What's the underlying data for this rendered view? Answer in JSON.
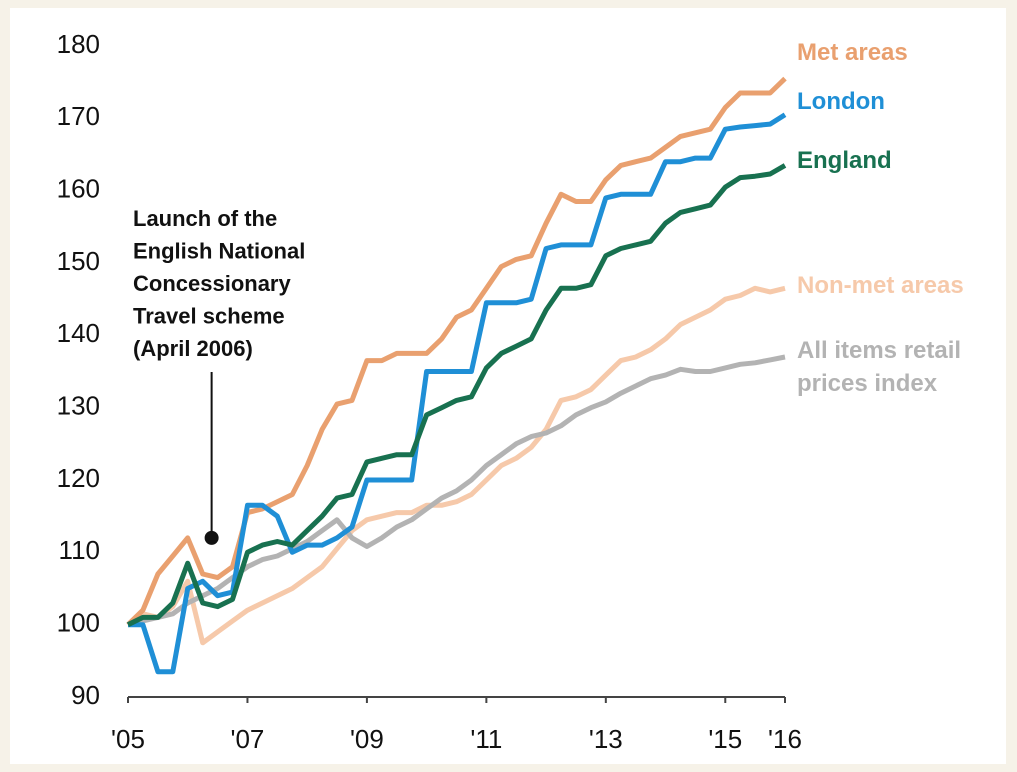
{
  "chart_data": {
    "type": "line",
    "x": [
      2005,
      2005.25,
      2005.5,
      2005.75,
      2006,
      2006.25,
      2006.5,
      2006.75,
      2007,
      2007.25,
      2007.5,
      2007.75,
      2008,
      2008.25,
      2008.5,
      2008.75,
      2009,
      2009.25,
      2009.5,
      2009.75,
      2010,
      2010.25,
      2010.5,
      2010.75,
      2011,
      2011.25,
      2011.5,
      2011.75,
      2012,
      2012.25,
      2012.5,
      2012.75,
      2013,
      2013.25,
      2013.5,
      2013.75,
      2014,
      2014.25,
      2014.5,
      2014.75,
      2015,
      2015.25,
      2015.5,
      2015.75,
      2016
    ],
    "xlim": [
      2005,
      2016
    ],
    "xticks": [
      {
        "value": 2005,
        "label": "'05"
      },
      {
        "value": 2007,
        "label": "'07"
      },
      {
        "value": 2009,
        "label": "'09"
      },
      {
        "value": 2011,
        "label": "'11"
      },
      {
        "value": 2013,
        "label": "'13"
      },
      {
        "value": 2015,
        "label": "'15"
      },
      {
        "value": 2016,
        "label": "'16"
      }
    ],
    "ylim": [
      90,
      180
    ],
    "yticks": [
      90,
      100,
      110,
      120,
      130,
      140,
      150,
      160,
      170,
      180
    ],
    "grid": false,
    "series": [
      {
        "name": "Non-met areas",
        "color": "#f6c9aa",
        "values": [
          100,
          101.5,
          101,
          102.5,
          106,
          97.5,
          99,
          100.5,
          102,
          103,
          104,
          105,
          106.5,
          108,
          110.5,
          113,
          114.5,
          115,
          115.5,
          115.5,
          116.5,
          116.5,
          117,
          118,
          120,
          122,
          123,
          124.5,
          127,
          131,
          131.5,
          132.5,
          134.5,
          136.5,
          137,
          138,
          139.5,
          141.5,
          142.5,
          143.5,
          145,
          145.5,
          146.5,
          146,
          146.5
        ]
      },
      {
        "name": "All items retail prices index",
        "color": "#b3b3b3",
        "values": [
          100,
          100.5,
          101,
          101.5,
          103,
          104,
          105,
          106.5,
          108,
          109,
          109.5,
          110.5,
          111.5,
          113,
          114.5,
          112,
          110.8,
          112,
          113.5,
          114.5,
          116,
          117.5,
          118.5,
          120,
          122,
          123.5,
          125,
          126,
          126.5,
          127.5,
          129,
          130,
          130.8,
          132,
          133,
          134,
          134.5,
          135.3,
          135,
          135,
          135.5,
          136,
          136.2,
          136.6,
          137
        ]
      },
      {
        "name": "Met areas",
        "color": "#e9a06f",
        "values": [
          100,
          102,
          107,
          109.5,
          112,
          107,
          106.5,
          108,
          115.5,
          116,
          117,
          118,
          122,
          127,
          130.5,
          131,
          136.5,
          136.5,
          137.5,
          137.5,
          137.5,
          139.5,
          142.5,
          143.5,
          146.5,
          149.5,
          150.5,
          151,
          155.5,
          159.5,
          158.5,
          158.5,
          161.5,
          163.5,
          164,
          164.5,
          166,
          167.5,
          168,
          168.5,
          171.5,
          173.5,
          173.5,
          173.5,
          175.5
        ]
      },
      {
        "name": "London",
        "color": "#1f8fd6",
        "values": [
          100,
          100,
          93.5,
          93.5,
          105,
          106,
          104,
          104.5,
          116.5,
          116.5,
          115,
          110,
          111,
          111,
          112,
          113.5,
          120,
          120,
          120,
          120,
          135,
          135,
          135,
          135,
          144.5,
          144.5,
          144.5,
          145,
          152,
          152.5,
          152.5,
          152.5,
          159,
          159.5,
          159.5,
          159.5,
          164,
          164,
          164.5,
          164.5,
          168.5,
          168.8,
          169,
          169.2,
          170.5
        ]
      },
      {
        "name": "England",
        "color": "#187150",
        "values": [
          100,
          101,
          101,
          103,
          108.5,
          103,
          102.5,
          103.5,
          110,
          111,
          111.5,
          111,
          113,
          115,
          117.5,
          118,
          122.5,
          123,
          123.5,
          123.5,
          129,
          130,
          131,
          131.5,
          135.5,
          137.5,
          138.5,
          139.5,
          143.5,
          146.5,
          146.5,
          147,
          151,
          152,
          152.5,
          153,
          155.5,
          157,
          157.5,
          158,
          160.5,
          161.8,
          162,
          162.3,
          163.5
        ]
      }
    ],
    "annotation": {
      "lines": [
        "Launch of the",
        "English National",
        "Concessionary",
        "Travel scheme",
        "(April 2006)"
      ],
      "x": 2006.4,
      "y": 112
    }
  }
}
